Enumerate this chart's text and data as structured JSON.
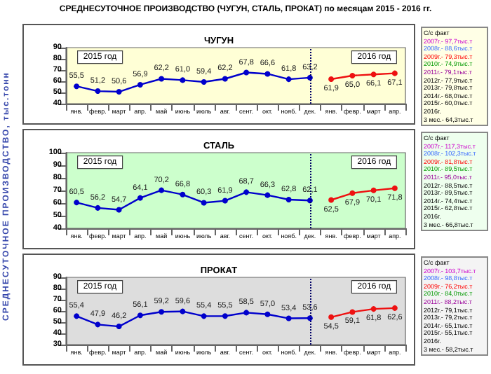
{
  "chart_data": [
    {
      "type": "other",
      "title": "СРЕДНЕСУТОЧНОЕ  ПРОИЗВОДСТВО  (ЧУГУН, СТАЛЬ, ПРОКАТ)  по месяцам   2015 - 2016 гг.",
      "annotations": [
        "СРЕДНЕСУТОЧНОЕ   ПРОИЗВОДСТВО,  тыс.тонн"
      ]
    },
    {
      "type": "line",
      "title": "ЧУГУН",
      "categories": [
        "янв.",
        "февр.",
        "март",
        "апр.",
        "май",
        "июнь",
        "июль",
        "авг.",
        "сент.",
        "окт.",
        "нояб.",
        "дек.",
        "янв.",
        "февр.",
        "март",
        "апр."
      ],
      "series": [
        {
          "color": "#0000cc",
          "values": [
            55.5,
            51.2,
            50.6,
            56.9,
            62.2,
            61.0,
            59.4,
            62.2,
            67.8,
            66.6,
            61.8,
            63.2,
            null,
            null,
            null,
            null
          ],
          "value_labels": [
            "55,5",
            "51,2",
            "50,6",
            "56,9",
            "62,2",
            "61,0",
            "59,4",
            "62,2",
            "67,8",
            "66,6",
            "61,8",
            "63,2",
            null,
            null,
            null,
            null
          ]
        },
        {
          "color": "#ee1111",
          "values": [
            null,
            null,
            null,
            null,
            null,
            null,
            null,
            null,
            null,
            null,
            null,
            null,
            61.9,
            65.0,
            66.1,
            67.1
          ],
          "value_labels": [
            null,
            null,
            null,
            null,
            null,
            null,
            null,
            null,
            null,
            null,
            null,
            null,
            "61,9",
            "65,0",
            "66,1",
            "67,1"
          ]
        }
      ],
      "ylim": [
        40,
        90
      ],
      "yticks": [
        40,
        50,
        60,
        70,
        80,
        90
      ],
      "marker": "circle",
      "annotations": [
        "2015 год",
        "2016 год"
      ],
      "ref_lines": [
        {
          "axis": "x",
          "value": "дек.",
          "line_style": "dotted",
          "color": "#000066"
        }
      ]
    },
    {
      "type": "line",
      "title": "СТАЛЬ",
      "categories": [
        "янв.",
        "февр.",
        "март",
        "апр.",
        "май",
        "июнь",
        "июль",
        "авг.",
        "сент.",
        "окт.",
        "нояб.",
        "дек.",
        "янв.",
        "февр.",
        "март",
        "апр."
      ],
      "series": [
        {
          "color": "#0000cc",
          "values": [
            60.5,
            56.2,
            54.7,
            64.1,
            70.2,
            66.8,
            60.3,
            61.9,
            68.7,
            66.3,
            62.8,
            62.1,
            null,
            null,
            null,
            null
          ],
          "value_labels": [
            "60,5",
            "56,2",
            "54,7",
            "64,1",
            "70,2",
            "66,8",
            "60,3",
            "61,9",
            "68,7",
            "66,3",
            "62,8",
            "62,1",
            null,
            null,
            null,
            null
          ]
        },
        {
          "color": "#ee1111",
          "values": [
            null,
            null,
            null,
            null,
            null,
            null,
            null,
            null,
            null,
            null,
            null,
            null,
            62.5,
            67.9,
            70.1,
            71.8
          ],
          "value_labels": [
            null,
            null,
            null,
            null,
            null,
            null,
            null,
            null,
            null,
            null,
            null,
            null,
            "62,5",
            "67,9",
            "70,1",
            "71,8"
          ]
        }
      ],
      "ylim": [
        40,
        100
      ],
      "yticks": [
        40,
        50,
        60,
        70,
        80,
        90,
        100
      ],
      "marker": "circle",
      "annotations": [
        "2015 год",
        "2016 год"
      ],
      "ref_lines": [
        {
          "axis": "x",
          "value": "дек.",
          "line_style": "dotted",
          "color": "#000066"
        }
      ]
    },
    {
      "type": "line",
      "title": "ПРОКАТ",
      "categories": [
        "янв.",
        "февр.",
        "март",
        "апр.",
        "май",
        "июнь",
        "июль",
        "авг.",
        "сент.",
        "окт.",
        "нояб.",
        "дек.",
        "янв.",
        "февр.",
        "март",
        "апр."
      ],
      "series": [
        {
          "color": "#0000cc",
          "values": [
            55.4,
            47.9,
            46.2,
            56.1,
            59.2,
            59.6,
            55.4,
            55.5,
            58.5,
            57.0,
            53.4,
            53.6,
            null,
            null,
            null,
            null
          ],
          "value_labels": [
            "55,4",
            "47,9",
            "46,2",
            "56,1",
            "59,2",
            "59,6",
            "55,4",
            "55,5",
            "58,5",
            "57,0",
            "53,4",
            "53,6",
            null,
            null,
            null,
            null
          ]
        },
        {
          "color": "#ee1111",
          "values": [
            null,
            null,
            null,
            null,
            null,
            null,
            null,
            null,
            null,
            null,
            null,
            null,
            54.5,
            59.1,
            61.8,
            62.6
          ],
          "value_labels": [
            null,
            null,
            null,
            null,
            null,
            null,
            null,
            null,
            null,
            null,
            null,
            null,
            "54,5",
            "59,1",
            "61,8",
            "62,6"
          ]
        }
      ],
      "ylim": [
        30,
        90
      ],
      "yticks": [
        30,
        40,
        50,
        60,
        70,
        80,
        90
      ],
      "marker": "circle",
      "annotations": [
        "2015 год",
        "2016 год"
      ],
      "ref_lines": [
        {
          "axis": "x",
          "value": "дек.",
          "line_style": "dotted",
          "color": "#000066"
        }
      ]
    },
    {
      "type": "other",
      "annotations": [
        "С/с факт",
        "2007г.- 97,7тыс.т",
        "2008г.- 88,6тыс.т",
        "2009г.- 79,3тыс.т",
        "2010г.- 74,9тыс.т",
        "2011г.- 79,1тыс.т",
        "2012г.- 77,9тыс.т",
        "2013г.- 79,8тыс.т",
        "2014г.- 68,0тыс.т",
        "2015г.- 60,0тыс.т",
        "2016г.",
        "3 мес.- 64,3тыс.т"
      ],
      "colors": [
        "#000000",
        "#cc00cc",
        "#3366ff",
        "#ff0000",
        "#009900",
        "#990099",
        "#000000",
        "#000000",
        "#000000",
        "#000000",
        "#000000",
        "#000000"
      ]
    },
    {
      "type": "other",
      "annotations": [
        "С/с факт",
        "2007г.- 117,3тыс.т",
        "2008г.- 102,3тыс.т",
        "2009г.- 81,8тыс.т",
        "2010г.- 89,5тыс.т",
        "2011г.- 95,0тыс.т",
        "2012г.- 88,5тыс.т",
        "2013г.- 89,5тыс.т",
        "2014г.- 74,4тыс.т",
        "2015г.- 62,8тыс.т",
        "2016г.",
        "3 мес.- 66,8тыс.т"
      ],
      "colors": [
        "#000000",
        "#cc00cc",
        "#3366ff",
        "#ff0000",
        "#009900",
        "#990099",
        "#000000",
        "#000000",
        "#000000",
        "#000000",
        "#000000",
        "#000000"
      ]
    },
    {
      "type": "other",
      "annotations": [
        "С/с факт",
        "2007г.- 103,7тыс.т",
        "2008г.- 98,8тыс.т",
        "2009г.- 76,2тыс.т",
        "2010г.- 84,0тыс.т",
        "2011г.- 88,2тыс.т",
        "2012г.- 79,1тыс.т",
        "2013г.- 79,2тыс.т",
        "2014г.- 65,1тыс.т",
        "2015г.- 55,1тыс.т",
        "2016г.",
        "3 мес.- 58,2тыс.т"
      ],
      "colors": [
        "#000000",
        "#cc00cc",
        "#3366ff",
        "#ff0000",
        "#009900",
        "#990099",
        "#000000",
        "#000000",
        "#000000",
        "#000000",
        "#000000",
        "#000000"
      ]
    }
  ]
}
